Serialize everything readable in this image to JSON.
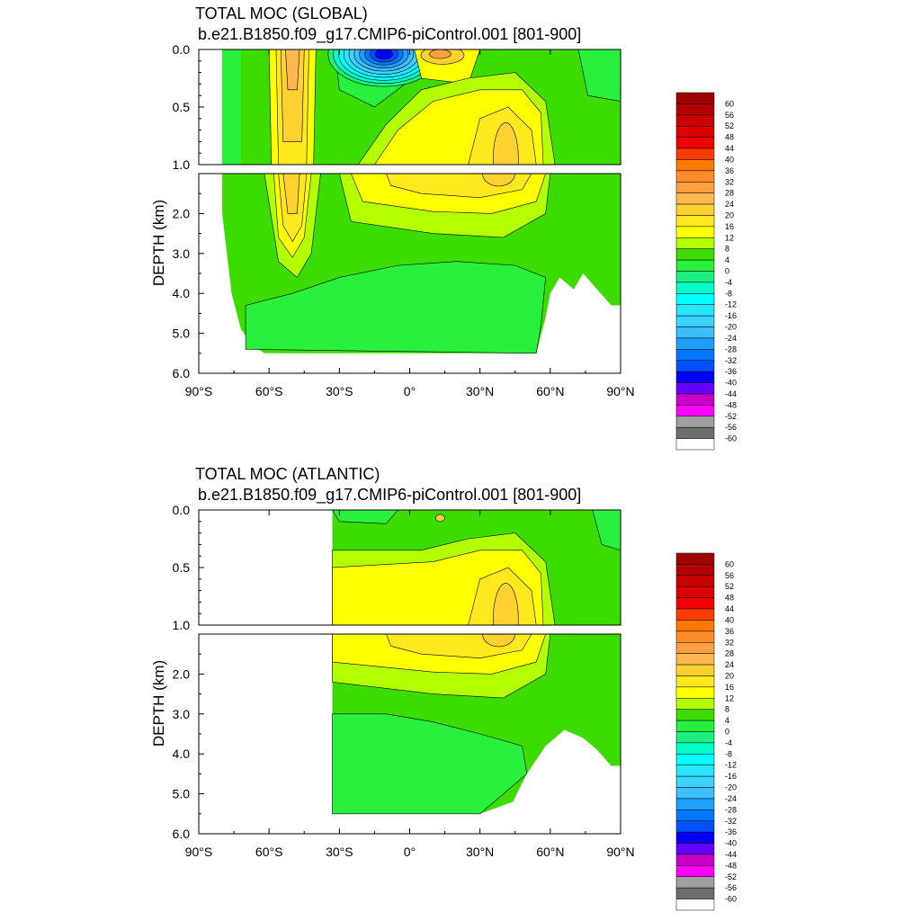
{
  "chart_data": [
    {
      "type": "heatmap",
      "title": "TOTAL MOC (GLOBAL)",
      "subtitle": "b.e21.B1850.f09_g17.CMIP6-piControl.001 [801-900]",
      "xlabel": "",
      "ylabel": "DEPTH (km)",
      "xlim": [
        -90,
        90
      ],
      "ylim": [
        6.0,
        0.0
      ],
      "x_tick_labels": [
        "90°S",
        "60°S",
        "30°S",
        "0°",
        "30°N",
        "60°N",
        "90°N"
      ],
      "y_tick_labels_upper": [
        "0.0",
        "0.5",
        "1.0"
      ],
      "y_tick_labels_lower": [
        "2.0",
        "3.0",
        "4.0",
        "5.0",
        "6.0"
      ],
      "features": [
        {
          "lat": -50,
          "depth_km": 0.5,
          "value": 24
        },
        {
          "lat": -50,
          "depth_km": 2.0,
          "value": 20
        },
        {
          "lat": -12,
          "depth_km": 0.05,
          "value": -40
        },
        {
          "lat": 13,
          "depth_km": 0.05,
          "value": 28
        },
        {
          "lat": 42,
          "depth_km": 0.9,
          "value": 20
        },
        {
          "lat": 10,
          "depth_km": 0.8,
          "value": 16
        },
        {
          "lat": 0,
          "depth_km": 4.2,
          "value": -4
        }
      ]
    },
    {
      "type": "heatmap",
      "title": "TOTAL MOC (ATLANTIC)",
      "subtitle": "b.e21.B1850.f09_g17.CMIP6-piControl.001 [801-900]",
      "xlabel": "",
      "ylabel": "DEPTH (km)",
      "xlim": [
        -90,
        90
      ],
      "ylim": [
        6.0,
        0.0
      ],
      "x_tick_labels": [
        "90°S",
        "60°S",
        "30°S",
        "0°",
        "30°N",
        "60°N",
        "90°N"
      ],
      "y_tick_labels_upper": [
        "0.0",
        "0.5",
        "1.0"
      ],
      "y_tick_labels_lower": [
        "2.0",
        "3.0",
        "4.0",
        "5.0",
        "6.0"
      ],
      "features": [
        {
          "lat": 42,
          "depth_km": 0.9,
          "value": 20
        },
        {
          "lat": 10,
          "depth_km": 0.8,
          "value": 16
        },
        {
          "lat": -5,
          "depth_km": 0.05,
          "value": -4
        },
        {
          "lat": 0,
          "depth_km": 4.2,
          "value": -4
        }
      ]
    }
  ],
  "colorbar": {
    "labels": [
      "60",
      "56",
      "52",
      "48",
      "44",
      "40",
      "36",
      "32",
      "28",
      "24",
      "20",
      "16",
      "12",
      "8",
      "4",
      "0",
      "-4",
      "-8",
      "-12",
      "-16",
      "-20",
      "-24",
      "-28",
      "-32",
      "-36",
      "-40",
      "-44",
      "-48",
      "-52",
      "-56",
      "-60"
    ],
    "colors": [
      "#a00000",
      "#b40000",
      "#c80000",
      "#dc0000",
      "#f00000",
      "#ff3c00",
      "#ff7800",
      "#ff8c28",
      "#ffa040",
      "#ffb850",
      "#ffd232",
      "#ffe81e",
      "#ffff00",
      "#b4ff00",
      "#3cdc00",
      "#28f03c",
      "#1ef080",
      "#00ffc8",
      "#00ffff",
      "#28e6ff",
      "#3cd2ff",
      "#3cbeff",
      "#1ea0ff",
      "#0078ff",
      "#0050ff",
      "#0000ff",
      "#6400ff",
      "#c800c8",
      "#ff00ff",
      "#a0a0a0",
      "#6e6e6e",
      "#ffffff"
    ]
  }
}
